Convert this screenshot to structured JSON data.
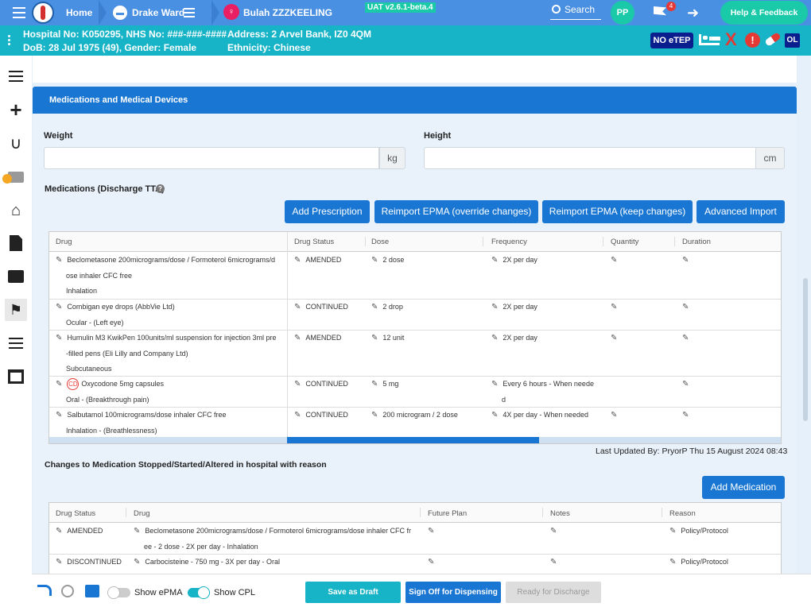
{
  "topbar": {
    "home_label": "Home",
    "ward_label": "Drake Ward",
    "patient_name": "Bulah ZZZKEELING",
    "version": "UAT v2.6.1-beta.4",
    "search_label": "Search",
    "user_initials": "PP",
    "flag_count": "4",
    "help_label": "Help & Feedback"
  },
  "patient": {
    "line1": "Hospital No: K050295, NHS No: ###-###-####",
    "line2": "DoB: 28 Jul 1975 (49), Gender: Female",
    "address": "Address: 2 Arvel Bank, IZ0 4QM",
    "ethnicity": "Ethnicity: Chinese",
    "etep_badge": "NO eTEP",
    "ol_badge": "OL"
  },
  "section": {
    "title": "Medications and Medical Devices",
    "weight_label": "Weight",
    "weight_unit": "kg",
    "height_label": "Height",
    "height_unit": "cm",
    "meds_label": "Medications (Discharge TTA)",
    "last_updated": "Last Updated By: PryorP Thu 15 August 2024 08:43",
    "changes_label": "Changes to Medication Stopped/Started/Altered in hospital with reason"
  },
  "buttons": {
    "add_prescription": "Add Prescription",
    "reimport_override": "Reimport EPMA (override changes)",
    "reimport_keep": "Reimport EPMA (keep changes)",
    "advanced_import": "Advanced Import",
    "add_medication": "Add Medication"
  },
  "med_table": {
    "headers": [
      "Drug",
      "Drug Status",
      "Dose",
      "Frequency",
      "Quantity",
      "Duration"
    ],
    "rows": [
      {
        "drug1": "Beclometasone 200micrograms/dose / Formoterol 6micrograms/d",
        "drug2": "ose inhaler CFC free",
        "drug3": "Inhalation",
        "status": "AMENDED",
        "dose": "2 dose",
        "freq1": "2X per day",
        "freq2": ""
      },
      {
        "drug1": "Combigan eye drops (AbbVie Ltd)",
        "drug2": "Ocular - (Left eye)",
        "drug3": "",
        "status": "CONTINUED",
        "dose": "2 drop",
        "freq1": "2X per day",
        "freq2": ""
      },
      {
        "drug1": "Humulin M3 KwikPen 100units/ml suspension for injection 3ml pre",
        "drug2": "-filled pens (Eli Lilly and Company Ltd)",
        "drug3": "Subcutaneous",
        "status": "AMENDED",
        "dose": "12 unit",
        "freq1": "2X per day",
        "freq2": ""
      },
      {
        "drug1": "Oxycodone 5mg capsules",
        "drug2": "Oral - (Breakthrough pain)",
        "drug3": "",
        "status": "CONTINUED",
        "dose": "5 mg",
        "freq1": "Every 6 hours - When neede",
        "freq2": "d"
      },
      {
        "drug1": "Salbutamol 100micrograms/dose inhaler CFC free",
        "drug2": "Inhalation - (Breathlessness)",
        "drug3": "",
        "status": "CONTINUED",
        "dose": "200 microgram / 2 dose",
        "freq1": "4X per day - When needed",
        "freq2": ""
      }
    ],
    "cd_badge": "CD"
  },
  "changes_table": {
    "headers": [
      "Drug Status",
      "Drug",
      "Future Plan",
      "Notes",
      "Reason"
    ],
    "rows": [
      {
        "status": "AMENDED",
        "drug1": "Beclometasone 200micrograms/dose / Formoterol 6micrograms/dose inhaler CFC fr",
        "drug2": "ee - 2 dose - 2X per day - Inhalation",
        "reason": "Policy/Protocol"
      },
      {
        "status": "DISCONTINUED",
        "drug1": "Carbocisteine - 750 mg - 3X per day - Oral",
        "drug2": "",
        "reason": "Policy/Protocol"
      }
    ]
  },
  "bottom": {
    "show_epma": "Show ePMA",
    "show_cpl": "Show CPL",
    "save_draft": "Save as Draft",
    "sign_off": "Sign Off for Dispensing",
    "ready": "Ready for Discharge"
  },
  "colors": {
    "primary": "#1976d2",
    "teal": "#17b3c7",
    "topbar": "#4a90e2",
    "red": "#e53935"
  }
}
